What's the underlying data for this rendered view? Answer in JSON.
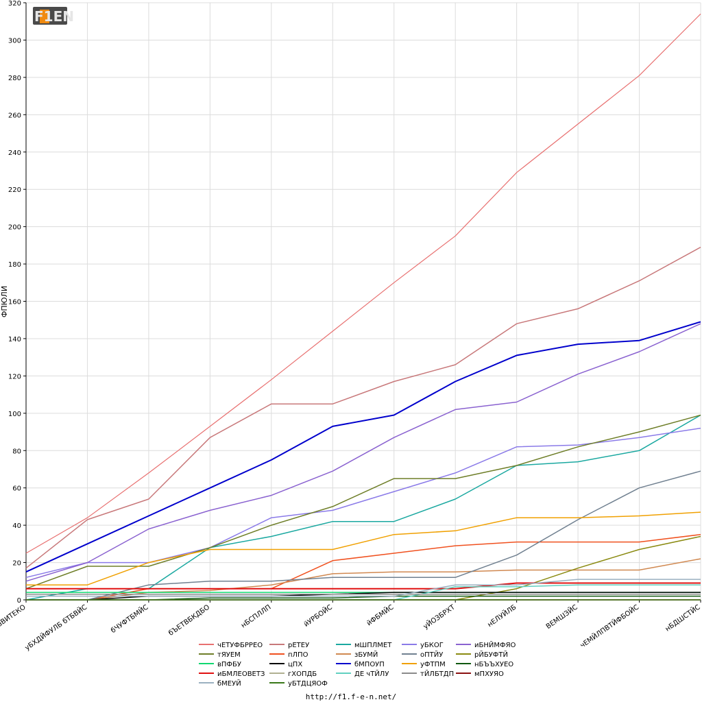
{
  "logo": {
    "text": "F1EN"
  },
  "footer": {
    "url": "http://f1.f-e-n.net/"
  },
  "chart_data": {
    "type": "line",
    "title": "",
    "xlabel": "",
    "ylabel": "ФПЮЛИ",
    "ylim": [
      0,
      320
    ],
    "yticks": [
      0,
      20,
      40,
      60,
      80,
      100,
      120,
      140,
      160,
      180,
      200,
      220,
      240,
      260,
      280,
      300,
      320
    ],
    "grid": true,
    "legend_position": "bottom",
    "categories": [
      "вВИТЕКО",
      "уБХДЙФУЛБ бТБВЙС",
      "бЧУФТБМЙС",
      "бЪЕТВБКДБО",
      "нБСПЛЛП",
      "йУРБОЙС",
      "йФБМЙС",
      "уЙОЗБРХТ",
      "нЕЛУЙЛБ",
      "ВЕМШЗЙС",
      "чЕМЙЛПВТЙФБОЙС",
      "нБДШСТЙС"
    ],
    "series": [
      {
        "name": "чЕТУФБРРЕО",
        "color": "#e87070",
        "width": 1.2,
        "values": [
          25,
          44,
          68,
          93,
          118,
          144,
          170,
          195,
          229,
          255,
          281,
          314
        ]
      },
      {
        "name": "рЕТЕУ",
        "color": "#c8787a",
        "width": 1.5,
        "values": [
          17,
          43,
          54,
          87,
          105,
          105,
          117,
          126,
          148,
          156,
          171,
          189
        ]
      },
      {
        "name": "мШПЛМЕТ",
        "color": "#1aa8a0",
        "width": 1.5,
        "values": [
          0,
          6,
          6,
          28,
          34,
          42,
          42,
          54,
          72,
          74,
          80,
          99
        ]
      },
      {
        "name": "уБКОГ",
        "color": "#8a7ae8",
        "width": 1.5,
        "values": [
          12,
          20,
          20,
          28,
          44,
          48,
          58,
          68,
          82,
          83,
          87,
          92
        ]
      },
      {
        "name": "иБНЙМФЯО",
        "color": "#8a62d0",
        "width": 1.5,
        "values": [
          10,
          20,
          38,
          48,
          56,
          69,
          87,
          102,
          106,
          121,
          133,
          148
        ]
      },
      {
        "name": "тЯУЕМ",
        "color": "#6e7e28",
        "width": 1.5,
        "values": [
          6,
          18,
          18,
          28,
          40,
          50,
          65,
          65,
          72,
          82,
          90,
          99
        ]
      },
      {
        "name": "пЛПО",
        "color": "#f0501e",
        "width": 1.5,
        "values": [
          0,
          0,
          6,
          6,
          6,
          21,
          25,
          29,
          31,
          31,
          31,
          35
        ]
      },
      {
        "name": "зБУМЙ",
        "color": "#d08850",
        "width": 1.5,
        "values": [
          0,
          0,
          4,
          5,
          8,
          14,
          15,
          15,
          16,
          16,
          16,
          22
        ]
      },
      {
        "name": "оПТЙУ",
        "color": "#708090",
        "width": 1.5,
        "values": [
          0,
          0,
          8,
          10,
          10,
          12,
          12,
          12,
          24,
          43,
          60,
          69
        ]
      },
      {
        "name": "рЙБУФТЙ",
        "color": "#8a8a10",
        "width": 1.5,
        "values": [
          0,
          0,
          0,
          0,
          0,
          0,
          0,
          0,
          6,
          17,
          27,
          34
        ]
      },
      {
        "name": "вПФБУ",
        "color": "#10d870",
        "width": 1.5,
        "values": [
          4,
          4,
          4,
          4,
          4,
          4,
          4,
          4,
          4,
          4,
          4,
          4
        ]
      },
      {
        "name": "цПХ",
        "color": "#000000",
        "width": 1.5,
        "values": [
          0,
          0,
          2,
          2,
          2,
          3,
          4,
          4,
          4,
          4,
          4,
          4
        ]
      },
      {
        "name": "бМПОУП",
        "color": "#0000cc",
        "width": 2,
        "values": [
          15,
          30,
          45,
          60,
          75,
          93,
          99,
          117,
          131,
          137,
          139,
          149
        ]
      },
      {
        "name": "уФТПМ",
        "color": "#f0a000",
        "width": 1.5,
        "values": [
          8,
          8,
          20,
          27,
          27,
          27,
          35,
          37,
          44,
          44,
          45,
          47
        ]
      },
      {
        "name": "нБЪЪХУЕО",
        "color": "#105810",
        "width": 1.5,
        "values": [
          0,
          0,
          0,
          1,
          1,
          1,
          2,
          2,
          2,
          2,
          2,
          2
        ]
      },
      {
        "name": "иБМЛЕОВЕТЗ",
        "color": "#e01010",
        "width": 2,
        "values": [
          6,
          6,
          6,
          6,
          6,
          6,
          6,
          6,
          9,
          9,
          9,
          9
        ]
      },
      {
        "name": "гХОПДБ",
        "color": "#b0b090",
        "width": 1.5,
        "values": [
          0,
          0,
          0,
          0,
          0,
          0,
          0,
          0,
          0,
          0,
          0,
          0
        ]
      },
      {
        "name": "ДЕ чТЙЛУ",
        "color": "#60d0c0",
        "width": 1.5,
        "values": [
          0,
          0,
          0,
          0,
          0,
          0,
          0,
          7,
          7,
          8,
          8,
          8
        ]
      },
      {
        "name": "тЙЛБТДП",
        "color": "#8a8a8a",
        "width": 1.5,
        "values": [
          3,
          3,
          3,
          3,
          3,
          3,
          3,
          3,
          3,
          3,
          3,
          3
        ]
      },
      {
        "name": "мПХУЯО",
        "color": "#8a1010",
        "width": 1.5,
        "values": [
          0,
          0,
          0,
          0,
          0,
          0,
          0,
          0,
          0,
          0,
          0,
          0
        ]
      },
      {
        "name": "бМЕУЙ",
        "color": "#9ab0c0",
        "width": 1.5,
        "values": [
          2,
          2,
          2,
          2,
          2,
          2,
          2,
          8,
          8,
          11,
          11,
          11
        ]
      },
      {
        "name": "уБТДЦЯОФ",
        "color": "#387818",
        "width": 1.5,
        "values": [
          0,
          0,
          0,
          0,
          0,
          0,
          0,
          0,
          0,
          0,
          0,
          0
        ]
      }
    ],
    "legend_columns": [
      [
        "чЕТУФБРРЕО",
        "тЯУЕМ",
        "вПФБУ",
        "иБМЛЕОВЕТЗ",
        "бМЕУЙ"
      ],
      [
        "рЕТЕУ",
        "пЛПО",
        "цПХ",
        "гХОПДБ",
        "уБТДЦЯОФ"
      ],
      [
        "мШПЛМЕТ",
        "зБУМЙ",
        "бМПОУП",
        "ДЕ чТЙЛУ"
      ],
      [
        "уБКОГ",
        "оПТЙУ",
        "уФТПМ",
        "тЙЛБТДП"
      ],
      [
        "иБНЙМФЯО",
        "рЙБУФТЙ",
        "нБЪЪХУЕО",
        "мПХУЯО"
      ]
    ]
  }
}
